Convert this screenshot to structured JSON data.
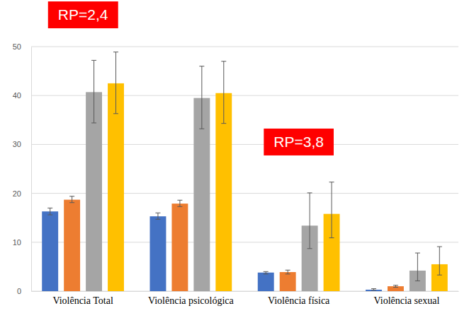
{
  "chart_data": {
    "type": "bar",
    "categories": [
      "Violência Total",
      "Violência psicológica",
      "Violência física",
      "Violência sexual"
    ],
    "series": [
      {
        "color": "#4472c4",
        "values": [
          16.3,
          15.3,
          3.8,
          0.3
        ],
        "ci_low": [
          15.6,
          14.7,
          3.5,
          0.2
        ],
        "ci_high": [
          17.0,
          16.0,
          4.0,
          0.5
        ]
      },
      {
        "color": "#ed7d31",
        "values": [
          18.7,
          17.9,
          3.9,
          1.0
        ],
        "ci_low": [
          18.1,
          17.3,
          3.5,
          0.8
        ],
        "ci_high": [
          19.4,
          18.6,
          4.3,
          1.2
        ]
      },
      {
        "color": "#a5a5a5",
        "values": [
          40.7,
          39.5,
          13.4,
          4.2
        ],
        "ci_low": [
          34.4,
          33.2,
          8.7,
          2.1
        ],
        "ci_high": [
          47.2,
          46.0,
          20.1,
          7.8
        ]
      },
      {
        "color": "#ffc000",
        "values": [
          42.5,
          40.5,
          15.8,
          5.5
        ],
        "ci_low": [
          36.3,
          34.3,
          10.9,
          3.3
        ],
        "ci_high": [
          48.9,
          47.0,
          22.3,
          9.1
        ]
      }
    ],
    "ylim": [
      0,
      50
    ],
    "yticks": [
      0,
      10,
      20,
      30,
      40,
      50
    ],
    "grid": true,
    "annotations": [
      "RP=2,4",
      "RP=3,8"
    ]
  }
}
